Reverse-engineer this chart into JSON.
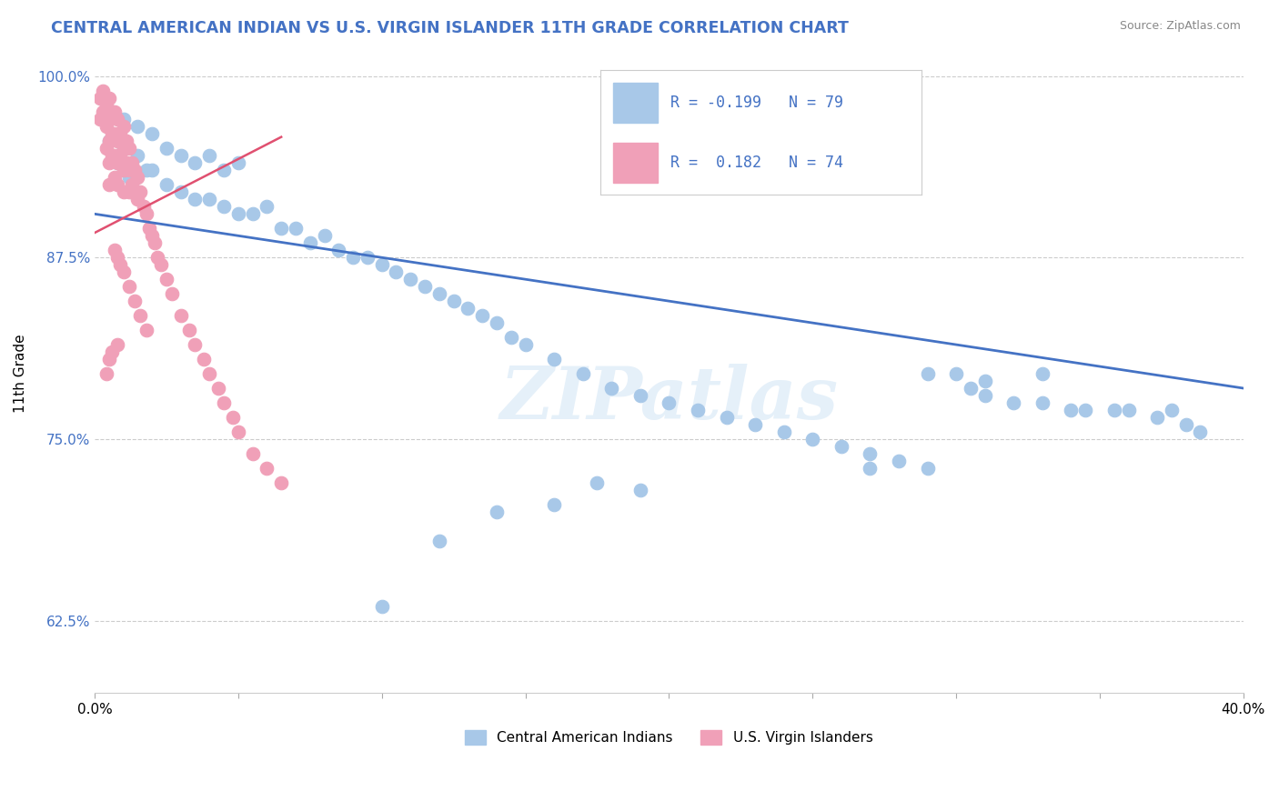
{
  "title": "CENTRAL AMERICAN INDIAN VS U.S. VIRGIN ISLANDER 11TH GRADE CORRELATION CHART",
  "source": "Source: ZipAtlas.com",
  "ylabel": "11th Grade",
  "xlim": [
    0.0,
    0.4
  ],
  "ylim": [
    0.575,
    1.015
  ],
  "yticks": [
    0.625,
    0.75,
    0.875,
    1.0
  ],
  "ytick_labels": [
    "62.5%",
    "75.0%",
    "87.5%",
    "100.0%"
  ],
  "xticks": [
    0.0,
    0.05,
    0.1,
    0.15,
    0.2,
    0.25,
    0.3,
    0.35,
    0.4
  ],
  "blue_color": "#A8C8E8",
  "pink_color": "#F0A0B8",
  "trend_blue": "#4472C4",
  "trend_pink": "#E05070",
  "watermark_text": "ZIPatlas",
  "blue_scatter_x": [
    0.005,
    0.008,
    0.01,
    0.01,
    0.012,
    0.015,
    0.015,
    0.018,
    0.02,
    0.02,
    0.025,
    0.025,
    0.03,
    0.03,
    0.035,
    0.035,
    0.04,
    0.04,
    0.045,
    0.045,
    0.05,
    0.05,
    0.055,
    0.06,
    0.065,
    0.07,
    0.075,
    0.08,
    0.085,
    0.09,
    0.095,
    0.1,
    0.105,
    0.11,
    0.115,
    0.12,
    0.125,
    0.13,
    0.135,
    0.14,
    0.145,
    0.15,
    0.16,
    0.17,
    0.18,
    0.19,
    0.2,
    0.21,
    0.22,
    0.23,
    0.24,
    0.25,
    0.26,
    0.27,
    0.28,
    0.29,
    0.3,
    0.305,
    0.31,
    0.32,
    0.33,
    0.34,
    0.345,
    0.355,
    0.36,
    0.37,
    0.375,
    0.38,
    0.385,
    0.29,
    0.31,
    0.33,
    0.27,
    0.19,
    0.175,
    0.16,
    0.14,
    0.12,
    0.1
  ],
  "blue_scatter_y": [
    0.955,
    0.94,
    0.97,
    0.95,
    0.93,
    0.965,
    0.945,
    0.935,
    0.96,
    0.935,
    0.95,
    0.925,
    0.945,
    0.92,
    0.94,
    0.915,
    0.945,
    0.915,
    0.935,
    0.91,
    0.94,
    0.905,
    0.905,
    0.91,
    0.895,
    0.895,
    0.885,
    0.89,
    0.88,
    0.875,
    0.875,
    0.87,
    0.865,
    0.86,
    0.855,
    0.85,
    0.845,
    0.84,
    0.835,
    0.83,
    0.82,
    0.815,
    0.805,
    0.795,
    0.785,
    0.78,
    0.775,
    0.77,
    0.765,
    0.76,
    0.755,
    0.75,
    0.745,
    0.74,
    0.735,
    0.73,
    0.795,
    0.785,
    0.78,
    0.775,
    0.775,
    0.77,
    0.77,
    0.77,
    0.77,
    0.765,
    0.77,
    0.76,
    0.755,
    0.795,
    0.79,
    0.795,
    0.73,
    0.715,
    0.72,
    0.705,
    0.7,
    0.68,
    0.635
  ],
  "pink_scatter_x": [
    0.002,
    0.002,
    0.003,
    0.003,
    0.004,
    0.004,
    0.004,
    0.005,
    0.005,
    0.005,
    0.005,
    0.005,
    0.006,
    0.006,
    0.006,
    0.007,
    0.007,
    0.007,
    0.007,
    0.008,
    0.008,
    0.008,
    0.008,
    0.009,
    0.009,
    0.01,
    0.01,
    0.01,
    0.01,
    0.011,
    0.011,
    0.012,
    0.012,
    0.012,
    0.013,
    0.013,
    0.014,
    0.014,
    0.015,
    0.015,
    0.016,
    0.017,
    0.018,
    0.019,
    0.02,
    0.021,
    0.022,
    0.023,
    0.025,
    0.027,
    0.03,
    0.033,
    0.035,
    0.038,
    0.04,
    0.043,
    0.045,
    0.048,
    0.05,
    0.055,
    0.06,
    0.065,
    0.007,
    0.008,
    0.009,
    0.01,
    0.012,
    0.014,
    0.016,
    0.018,
    0.008,
    0.006,
    0.005,
    0.004
  ],
  "pink_scatter_y": [
    0.985,
    0.97,
    0.99,
    0.975,
    0.98,
    0.965,
    0.95,
    0.985,
    0.97,
    0.955,
    0.94,
    0.925,
    0.975,
    0.96,
    0.945,
    0.975,
    0.96,
    0.945,
    0.93,
    0.97,
    0.955,
    0.94,
    0.925,
    0.96,
    0.945,
    0.965,
    0.95,
    0.935,
    0.92,
    0.955,
    0.94,
    0.95,
    0.935,
    0.92,
    0.94,
    0.925,
    0.935,
    0.92,
    0.93,
    0.915,
    0.92,
    0.91,
    0.905,
    0.895,
    0.89,
    0.885,
    0.875,
    0.87,
    0.86,
    0.85,
    0.835,
    0.825,
    0.815,
    0.805,
    0.795,
    0.785,
    0.775,
    0.765,
    0.755,
    0.74,
    0.73,
    0.72,
    0.88,
    0.875,
    0.87,
    0.865,
    0.855,
    0.845,
    0.835,
    0.825,
    0.815,
    0.81,
    0.805,
    0.795
  ],
  "blue_trend_x0": 0.0,
  "blue_trend_x1": 0.4,
  "blue_trend_y0": 0.905,
  "blue_trend_y1": 0.785,
  "pink_trend_x0": 0.0,
  "pink_trend_x1": 0.065,
  "pink_trend_y0": 0.892,
  "pink_trend_y1": 0.958
}
